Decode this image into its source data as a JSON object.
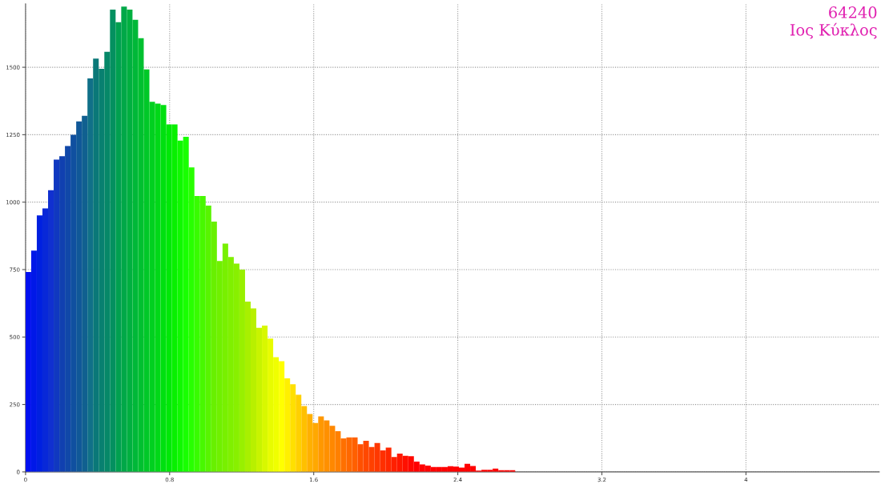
{
  "chart_data": {
    "type": "histogram",
    "annotations": [
      "64240",
      "Ιος Κύκλος"
    ],
    "bins": [
      0,
      0.03125,
      0.0625,
      0.09375,
      0.125,
      0.15625,
      0.1875,
      0.21875,
      0.25,
      0.28125,
      0.3125,
      0.34375,
      0.375,
      0.40625,
      0.4375,
      0.46875,
      0.5,
      0.53125,
      0.5625,
      0.59375,
      0.625,
      0.65625,
      0.6875,
      0.71875,
      0.75,
      0.78125,
      0.8125,
      0.84375,
      0.875,
      0.90625,
      0.9375,
      0.96875,
      1,
      1.03125,
      1.0625,
      1.09375,
      1.125,
      1.15625,
      1.1875,
      1.21875,
      1.25,
      1.28125,
      1.3125,
      1.34375,
      1.375,
      1.40625,
      1.4375,
      1.46875,
      1.5,
      1.53125,
      1.5625,
      1.59375,
      1.625,
      1.65625,
      1.6875,
      1.71875,
      1.75,
      1.78125,
      1.8125,
      1.84375,
      1.875,
      1.90625,
      1.9375,
      1.96875,
      2,
      2.03125,
      2.0625,
      2.09375,
      2.125,
      2.15625,
      2.1875,
      2.21875,
      2.25,
      2.28125,
      2.3125,
      2.34375,
      2.375,
      2.40625,
      2.4375,
      2.46875,
      2.5,
      2.53125,
      2.5625,
      2.59375,
      2.625,
      2.65625,
      2.6875,
      2.71875
    ],
    "values": [
      741,
      820,
      951,
      977,
      1044,
      1158,
      1170,
      1208,
      1250,
      1299,
      1320,
      1459,
      1532,
      1494,
      1557,
      1714,
      1667,
      1725,
      1714,
      1676,
      1608,
      1492,
      1372,
      1365,
      1360,
      1288,
      1288,
      1228,
      1242,
      1129,
      1023,
      1023,
      987,
      928,
      782,
      846,
      797,
      772,
      750,
      631,
      606,
      534,
      542,
      494,
      425,
      410,
      347,
      325,
      286,
      244,
      215,
      181,
      206,
      191,
      171,
      151,
      124,
      128,
      128,
      103,
      115,
      92,
      107,
      80,
      90,
      55,
      68,
      60,
      58,
      38,
      28,
      23,
      18,
      18,
      18,
      21,
      20,
      16,
      30,
      22,
      5,
      8,
      8,
      12,
      6,
      6,
      6
    ],
    "colors": [
      "#0010f0",
      "#0018e8",
      "#0020e0",
      "#0828d8",
      "#1030d0",
      "#1038c0",
      "#1040b0",
      "#1048a8",
      "#1050a0",
      "#105898",
      "#106090",
      "#107088",
      "#0a7878",
      "#088070",
      "#068868",
      "#049060",
      "#00a050",
      "#00a848",
      "#00b040",
      "#00b838",
      "#00c030",
      "#00c828",
      "#00d020",
      "#00d818",
      "#00e010",
      "#00e808",
      "#08f000",
      "#10f800",
      "#18ff00",
      "#28ff00",
      "#38fc00",
      "#48f800",
      "#58f400",
      "#68f000",
      "#70f000",
      "#78f000",
      "#80f000",
      "#88f000",
      "#98f000",
      "#a8f000",
      "#b8f000",
      "#c8f400",
      "#d8f800",
      "#e8fc00",
      "#f0ff00",
      "#ffff00",
      "#fff000",
      "#ffe000",
      "#ffd000",
      "#ffc000",
      "#ffb000",
      "#ffa800",
      "#ff9800",
      "#ff9000",
      "#ff8800",
      "#ff8000",
      "#ff7000",
      "#ff6800",
      "#ff6000",
      "#ff5000",
      "#ff4800",
      "#ff4000",
      "#ff3800",
      "#ff3000",
      "#ff2800",
      "#ff2000",
      "#ff1800",
      "#ff1000",
      "#ff0800",
      "#ff0000",
      "#ff0000",
      "#ff0000",
      "#ff0000",
      "#ff0000",
      "#ff0000",
      "#ff0000",
      "#ff0000",
      "#ff0000",
      "#ff0000",
      "#ff0000",
      "#ff0000",
      "#ff0000",
      "#ff0000",
      "#ff0000",
      "#ff0000",
      "#ff0000",
      "#ff0000"
    ],
    "xlim": [
      0,
      4.74
    ],
    "ylim": [
      0,
      1735
    ],
    "xticks": [
      0,
      0.8,
      1.6,
      2.4,
      3.2,
      4
    ],
    "yticks": [
      0,
      250,
      500,
      750,
      1000,
      1250,
      1500
    ],
    "grid": true
  }
}
